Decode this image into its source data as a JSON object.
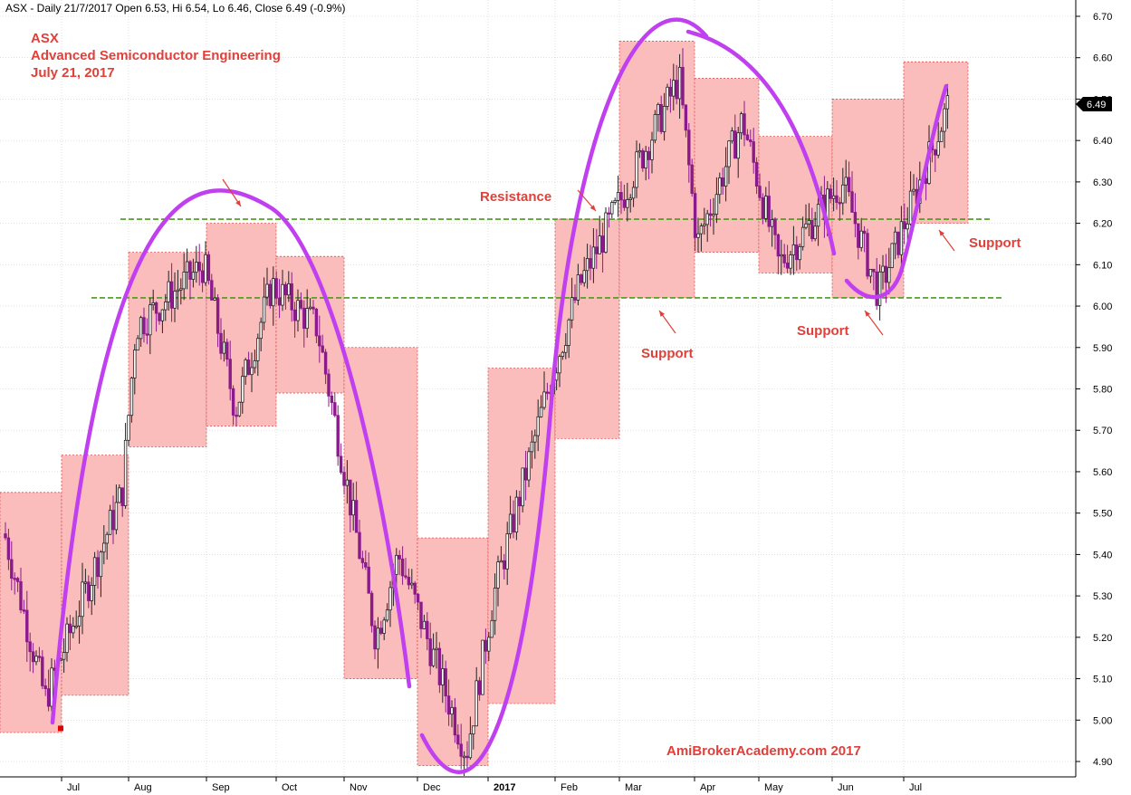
{
  "header": {
    "text": "ASX - Daily 21/7/2017 Open 6.53, Hi 6.54, Lo 6.46, Close 6.49 (-0.9%)"
  },
  "title_block": {
    "line1": "ASX",
    "line2": "Advanced Semiconductor Engineering",
    "line3": "July 21, 2017"
  },
  "watermark": "AmiBrokerAcademy.com  2017",
  "last_price_tag": "6.49",
  "colors": {
    "box_fill": "#fbbcbc",
    "box_border": "#e05050",
    "candle_up": "#222222",
    "candle_down": "#8b1a8b",
    "curve": "#c040f0",
    "support_line": "#4a9a1a",
    "annotation": "#e0403a",
    "grid": "#cccccc"
  },
  "chart_data": {
    "type": "candlestick",
    "title": "ASX",
    "subtitle": "Advanced Semiconductor Engineering",
    "date": "July 21, 2017",
    "grid": true,
    "price_axis": {
      "side": "right",
      "min": 4.85,
      "max": 6.72,
      "ticks": [
        "6.70",
        "6.60",
        "6.50",
        "6.40",
        "6.30",
        "6.20",
        "6.10",
        "6.00",
        "5.90",
        "5.80",
        "5.70",
        "5.60",
        "5.50",
        "5.40",
        "5.30",
        "5.20",
        "5.10",
        "5.00",
        "4.90"
      ]
    },
    "time_axis": {
      "labels": [
        "Jul",
        "Aug",
        "Sep",
        "Oct",
        "Nov",
        "Dec",
        "2017",
        "Feb",
        "Mar",
        "Apr",
        "May",
        "Jun",
        "Jul"
      ]
    },
    "monthly_ranges": [
      {
        "month": "Jun 2016",
        "high": 5.55,
        "low": 4.97
      },
      {
        "month": "Jul 2016",
        "high": 5.64,
        "low": 5.06
      },
      {
        "month": "Aug 2016",
        "high": 6.13,
        "low": 5.66
      },
      {
        "month": "Sep 2016",
        "high": 6.2,
        "low": 5.71
      },
      {
        "month": "Oct 2016",
        "high": 6.12,
        "low": 5.79
      },
      {
        "month": "Nov 2016",
        "high": 5.9,
        "low": 5.1
      },
      {
        "month": "Dec 2016",
        "high": 5.44,
        "low": 4.89
      },
      {
        "month": "Jan 2017",
        "high": 5.85,
        "low": 5.04
      },
      {
        "month": "Feb 2017",
        "high": 6.21,
        "low": 5.68
      },
      {
        "month": "Mar 2017",
        "high": 6.64,
        "low": 6.02
      },
      {
        "month": "Apr 2017",
        "high": 6.55,
        "low": 6.13
      },
      {
        "month": "May 2017",
        "high": 6.41,
        "low": 6.08
      },
      {
        "month": "Jun 2017",
        "high": 6.5,
        "low": 6.02
      },
      {
        "month": "Jul 2017",
        "high": 6.59,
        "low": 6.2
      }
    ],
    "horizontal_lines": [
      {
        "price": 6.21
      },
      {
        "price": 6.02
      }
    ],
    "annotations": [
      "Resistance",
      "Support",
      "Support",
      "Support"
    ],
    "last": {
      "open": 6.53,
      "high": 6.54,
      "low": 6.46,
      "close": 6.49
    }
  }
}
